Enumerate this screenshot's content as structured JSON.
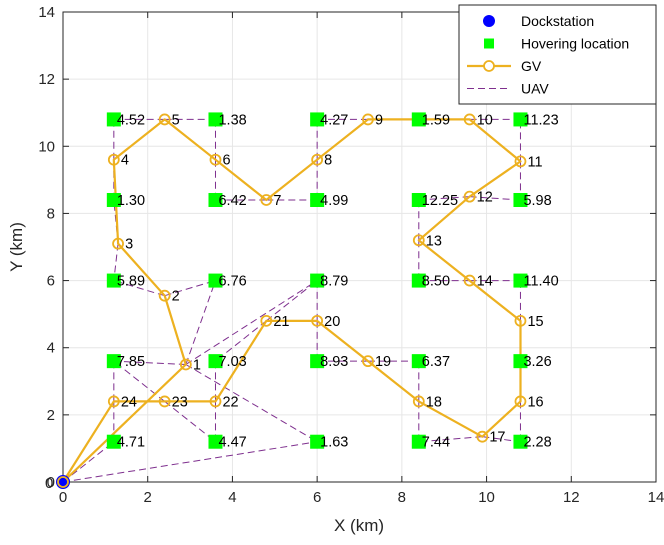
{
  "chart_data": {
    "type": "scatter",
    "xlabel": "X (km)",
    "ylabel": "Y (km)",
    "xlim": [
      0,
      14
    ],
    "ylim": [
      0,
      14
    ],
    "xticks": [
      "0",
      "2",
      "4",
      "6",
      "8",
      "10",
      "12",
      "14"
    ],
    "yticks": [
      "0",
      "2",
      "4",
      "6",
      "8",
      "10",
      "12",
      "14"
    ],
    "grid": true,
    "legend_position": "top-right",
    "colors": {
      "dock": "#0000ff",
      "hover": "#00ff00",
      "gv": "#edb120",
      "uav": "#7e2f8e"
    },
    "legend": {
      "dock": "Dockstation",
      "hover": "Hovering location",
      "gv": "GV",
      "uav": "UAV"
    },
    "dockstation": {
      "x": 0,
      "y": 0,
      "label": "0"
    },
    "gv_points": [
      {
        "id": "1",
        "x": 2.9,
        "y": 3.5
      },
      {
        "id": "2",
        "x": 2.4,
        "y": 5.55
      },
      {
        "id": "3",
        "x": 1.3,
        "y": 7.1
      },
      {
        "id": "4",
        "x": 1.2,
        "y": 9.6
      },
      {
        "id": "5",
        "x": 2.4,
        "y": 10.8
      },
      {
        "id": "6",
        "x": 3.6,
        "y": 9.6
      },
      {
        "id": "7",
        "x": 4.8,
        "y": 8.4
      },
      {
        "id": "8",
        "x": 6.0,
        "y": 9.6
      },
      {
        "id": "9",
        "x": 7.2,
        "y": 10.8
      },
      {
        "id": "10",
        "x": 9.6,
        "y": 10.8
      },
      {
        "id": "11",
        "x": 10.8,
        "y": 9.55
      },
      {
        "id": "12",
        "x": 9.6,
        "y": 8.5
      },
      {
        "id": "13",
        "x": 8.4,
        "y": 7.2
      },
      {
        "id": "14",
        "x": 9.6,
        "y": 6.0
      },
      {
        "id": "15",
        "x": 10.8,
        "y": 4.8
      },
      {
        "id": "16",
        "x": 10.8,
        "y": 2.4
      },
      {
        "id": "17",
        "x": 9.9,
        "y": 1.35
      },
      {
        "id": "18",
        "x": 8.4,
        "y": 2.4
      },
      {
        "id": "19",
        "x": 7.2,
        "y": 3.6
      },
      {
        "id": "20",
        "x": 6.0,
        "y": 4.8
      },
      {
        "id": "21",
        "x": 4.8,
        "y": 4.8
      },
      {
        "id": "22",
        "x": 3.6,
        "y": 2.4
      },
      {
        "id": "23",
        "x": 2.4,
        "y": 2.4
      },
      {
        "id": "24",
        "x": 1.2,
        "y": 2.4
      }
    ],
    "hover_points": [
      {
        "label": "4.52",
        "x": 1.2,
        "y": 10.8
      },
      {
        "label": "1.38",
        "x": 3.6,
        "y": 10.8
      },
      {
        "label": "4.27",
        "x": 6.0,
        "y": 10.8
      },
      {
        "label": "1.59",
        "x": 8.4,
        "y": 10.8
      },
      {
        "label": "11.23",
        "x": 10.8,
        "y": 10.8
      },
      {
        "label": "1.30",
        "x": 1.2,
        "y": 8.4
      },
      {
        "label": "6.42",
        "x": 3.6,
        "y": 8.4
      },
      {
        "label": "4.99",
        "x": 6.0,
        "y": 8.4
      },
      {
        "label": "12.25",
        "x": 8.4,
        "y": 8.4
      },
      {
        "label": "5.98",
        "x": 10.8,
        "y": 8.4
      },
      {
        "label": "5.89",
        "x": 1.2,
        "y": 6.0
      },
      {
        "label": "6.76",
        "x": 3.6,
        "y": 6.0
      },
      {
        "label": "8.79",
        "x": 6.0,
        "y": 6.0
      },
      {
        "label": "8.50",
        "x": 8.4,
        "y": 6.0
      },
      {
        "label": "11.40",
        "x": 10.8,
        "y": 6.0
      },
      {
        "label": "7.85",
        "x": 1.2,
        "y": 3.6
      },
      {
        "label": "7.03",
        "x": 3.6,
        "y": 3.6
      },
      {
        "label": "8.93",
        "x": 6.0,
        "y": 3.6
      },
      {
        "label": "6.37",
        "x": 8.4,
        "y": 3.6
      },
      {
        "label": "3.26",
        "x": 10.8,
        "y": 3.6
      },
      {
        "label": "4.71",
        "x": 1.2,
        "y": 1.2
      },
      {
        "label": "4.47",
        "x": 3.6,
        "y": 1.2
      },
      {
        "label": "1.63",
        "x": 6.0,
        "y": 1.2
      },
      {
        "label": "7.44",
        "x": 8.4,
        "y": 1.2
      },
      {
        "label": "2.28",
        "x": 10.8,
        "y": 1.2
      }
    ],
    "gv_route": [
      "0",
      "1",
      "2",
      "3",
      "4",
      "5",
      "6",
      "7",
      "8",
      "9",
      "10",
      "11",
      "12",
      "13",
      "14",
      "15",
      "16",
      "17",
      "18",
      "19",
      "20",
      "21",
      "22",
      "23",
      "24",
      "0"
    ],
    "uav_links": [
      {
        "from": "5",
        "to": "4.52"
      },
      {
        "from": "5",
        "to": "1.38"
      },
      {
        "from": "4",
        "to": "4.52"
      },
      {
        "from": "4",
        "to": "1.30"
      },
      {
        "from": "6",
        "to": "1.38"
      },
      {
        "from": "6",
        "to": "6.42"
      },
      {
        "from": "7",
        "to": "6.42"
      },
      {
        "from": "7",
        "to": "4.99"
      },
      {
        "from": "8",
        "to": "4.27"
      },
      {
        "from": "8",
        "to": "4.99"
      },
      {
        "from": "9",
        "to": "4.27"
      },
      {
        "from": "9",
        "to": "1.59"
      },
      {
        "from": "10",
        "to": "1.59"
      },
      {
        "from": "10",
        "to": "11.23"
      },
      {
        "from": "11",
        "to": "11.23"
      },
      {
        "from": "11",
        "to": "5.98"
      },
      {
        "from": "12",
        "to": "12.25"
      },
      {
        "from": "12",
        "to": "5.98"
      },
      {
        "from": "13",
        "to": "12.25"
      },
      {
        "from": "13",
        "to": "8.50"
      },
      {
        "from": "14",
        "to": "8.50"
      },
      {
        "from": "14",
        "to": "11.40"
      },
      {
        "from": "15",
        "to": "11.40"
      },
      {
        "from": "15",
        "to": "3.26"
      },
      {
        "from": "16",
        "to": "3.26"
      },
      {
        "from": "16",
        "to": "2.28"
      },
      {
        "from": "17",
        "to": "2.28"
      },
      {
        "from": "17",
        "to": "7.44"
      },
      {
        "from": "18",
        "to": "7.44"
      },
      {
        "from": "18",
        "to": "6.37"
      },
      {
        "from": "19",
        "to": "6.37"
      },
      {
        "from": "19",
        "to": "8.93"
      },
      {
        "from": "20",
        "to": "8.93"
      },
      {
        "from": "20",
        "to": "8.79"
      },
      {
        "from": "21",
        "to": "8.79"
      },
      {
        "from": "21",
        "to": "7.03"
      },
      {
        "from": "22",
        "to": "7.03"
      },
      {
        "from": "22",
        "to": "4.47"
      },
      {
        "from": "23",
        "to": "7.85"
      },
      {
        "from": "23",
        "to": "4.47"
      },
      {
        "from": "24",
        "to": "7.85"
      },
      {
        "from": "24",
        "to": "4.71"
      },
      {
        "from": "3",
        "to": "1.30"
      },
      {
        "from": "3",
        "to": "5.89"
      },
      {
        "from": "2",
        "to": "5.89"
      },
      {
        "from": "2",
        "to": "6.76"
      },
      {
        "from": "1",
        "to": "6.76"
      },
      {
        "from": "1",
        "to": "7.85"
      },
      {
        "from": "0",
        "to": "1.63"
      },
      {
        "from": "0",
        "to": "4.71"
      },
      {
        "from": "1",
        "to": "1.63"
      },
      {
        "from": "1",
        "to": "8.79"
      }
    ]
  }
}
